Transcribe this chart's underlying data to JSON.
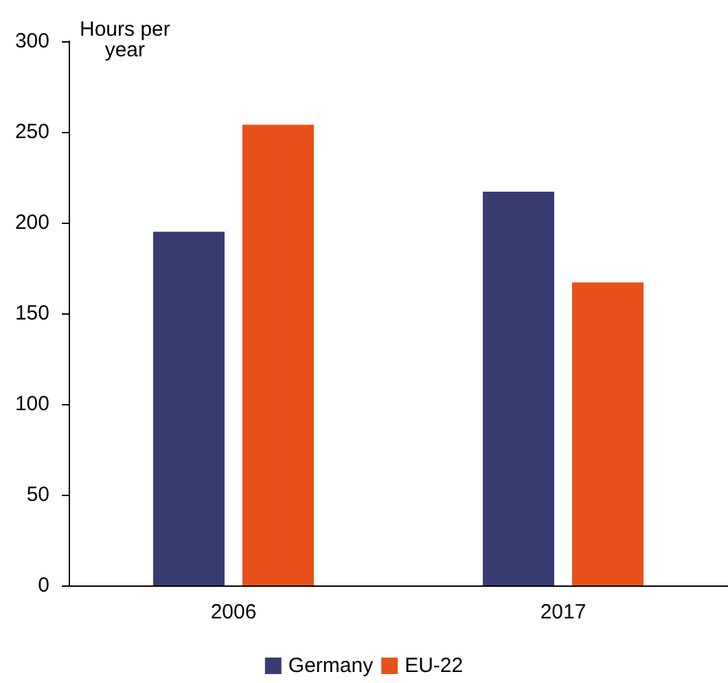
{
  "chart_data": {
    "type": "bar",
    "ylabel": "Hours per\nyear",
    "categories": [
      "2006",
      "2017"
    ],
    "series": [
      {
        "name": "Germany",
        "color": "#383c71",
        "values": [
          195,
          217
        ]
      },
      {
        "name": "EU-22",
        "color": "#e8511a",
        "values": [
          254,
          167
        ]
      }
    ],
    "ylim": [
      0,
      300
    ],
    "yticks": [
      0,
      50,
      100,
      150,
      200,
      250,
      300
    ],
    "grid": false,
    "legend": "bottom"
  }
}
